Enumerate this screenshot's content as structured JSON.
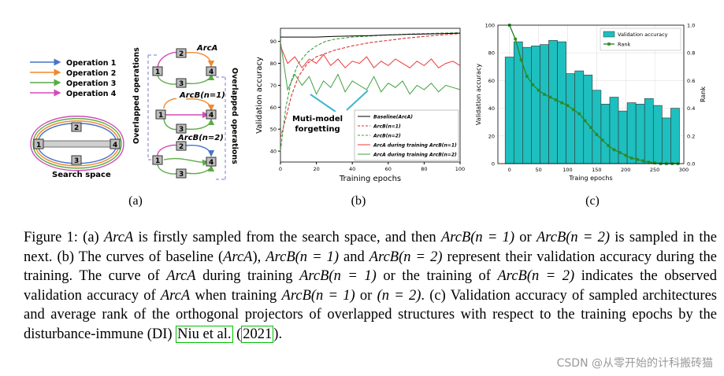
{
  "panel_a": {
    "legend": [
      {
        "label": "Operation 1",
        "color": "#4a74c9"
      },
      {
        "label": "Operation 2",
        "color": "#f08a2e"
      },
      {
        "label": "Operation 3",
        "color": "#5aac45"
      },
      {
        "label": "Operation 4",
        "color": "#d24bb8"
      }
    ],
    "search_space_label": "Search space",
    "arc_a_label": "ArcA",
    "arc_b1_label": "ArcB(n=1)",
    "arc_b2_label": "ArcB(n=2)",
    "overlap_left": "Overlapped operations",
    "overlap_right": "Overlapped operations",
    "nodes": [
      "1",
      "2",
      "3",
      "4"
    ]
  },
  "chart_data": [
    {
      "type": "line",
      "xlabel": "Training epochs",
      "ylabel": "Validation accuracy",
      "xlim": [
        0,
        100
      ],
      "ylim": [
        35,
        96
      ],
      "xticks": [
        "0",
        "20",
        "40",
        "60",
        "80",
        "100"
      ],
      "yticks": [
        "40",
        "50",
        "60",
        "70",
        "80",
        "90"
      ],
      "annotation": "Muti-model forgetting",
      "legend_placement": "bottom-right",
      "series": [
        {
          "name": "Baseline(ArcA)",
          "color": "#000000",
          "style": "solid",
          "x": [
            0,
            2,
            10,
            20,
            30,
            40,
            50,
            60,
            70,
            80,
            90,
            100
          ],
          "y": [
            92,
            92,
            92,
            92,
            92.3,
            92.5,
            92.7,
            93,
            93.2,
            93.4,
            93.6,
            93.8
          ]
        },
        {
          "name": "ArcB(n=1)",
          "color": "#e03030",
          "style": "dashed",
          "x": [
            0,
            3,
            6,
            10,
            15,
            20,
            30,
            40,
            50,
            60,
            70,
            80,
            90,
            100
          ],
          "y": [
            46,
            55,
            65,
            74,
            80,
            83,
            86,
            88,
            89.5,
            90.5,
            91.5,
            92.3,
            93,
            93.6
          ]
        },
        {
          "name": "ArcB(n=2)",
          "color": "#40a040",
          "style": "dashed",
          "x": [
            0,
            3,
            6,
            10,
            15,
            20,
            25,
            30,
            40,
            50,
            60,
            70,
            80,
            90,
            100
          ],
          "y": [
            40,
            60,
            72,
            80,
            85,
            88,
            90,
            91,
            92,
            92.5,
            93,
            93.3,
            93.6,
            93.8,
            94
          ]
        },
        {
          "name": "ArcA during training ArcB(n=1)",
          "color": "#f03a3a",
          "style": "solid",
          "x": [
            0,
            4,
            8,
            12,
            16,
            20,
            24,
            28,
            32,
            36,
            40,
            44,
            48,
            52,
            56,
            60,
            64,
            68,
            72,
            76,
            80,
            84,
            88,
            92,
            96,
            100
          ],
          "y": [
            88,
            80,
            83,
            78,
            82,
            80,
            84,
            79,
            82,
            78,
            81,
            80,
            83,
            78,
            81,
            79,
            82,
            80,
            78,
            81,
            79,
            82,
            78,
            80,
            81,
            79
          ]
        },
        {
          "name": "ArcA during training ArcB(n=2)",
          "color": "#40a040",
          "style": "solid",
          "x": [
            0,
            4,
            8,
            12,
            16,
            20,
            24,
            28,
            32,
            36,
            40,
            44,
            48,
            52,
            56,
            60,
            64,
            68,
            72,
            76,
            80,
            84,
            88,
            92,
            96,
            100
          ],
          "y": [
            90,
            68,
            75,
            70,
            74,
            66,
            72,
            69,
            75,
            67,
            72,
            70,
            68,
            74,
            67,
            71,
            69,
            72,
            66,
            70,
            68,
            71,
            67,
            70,
            69,
            68
          ]
        }
      ]
    },
    {
      "type": "bar",
      "xlabel": "Traing epochs",
      "ylabel": "Validation accuracy",
      "y2label": "Rank",
      "xlim": [
        -20,
        300
      ],
      "ylim": [
        0,
        100
      ],
      "y2lim": [
        0,
        1.0
      ],
      "xticks": [
        "0",
        "50",
        "100",
        "150",
        "200",
        "250",
        "300"
      ],
      "yticks": [
        "0",
        "20",
        "40",
        "60",
        "80",
        "100"
      ],
      "y2ticks": [
        "0.0",
        "0.2",
        "0.4",
        "0.6",
        "0.8",
        "1.0"
      ],
      "legend_placement": "top-right",
      "bar_series": {
        "name": "Validation accuracy",
        "color": "#1ebfbf",
        "x": [
          0,
          15,
          30,
          45,
          60,
          75,
          90,
          105,
          120,
          135,
          150,
          165,
          180,
          195,
          210,
          225,
          240,
          255,
          270,
          285
        ],
        "values": [
          77,
          88,
          84,
          85,
          86,
          89,
          88,
          65,
          67,
          64,
          53,
          43,
          48,
          38,
          44,
          43,
          47,
          42,
          33,
          40
        ]
      },
      "line_series": {
        "name": "Rank",
        "color": "#2a8a2a",
        "x": [
          0,
          10,
          20,
          30,
          40,
          50,
          60,
          70,
          80,
          90,
          100,
          110,
          120,
          130,
          140,
          150,
          160,
          170,
          180,
          190,
          200,
          210,
          220,
          230,
          240,
          250,
          260,
          270,
          280,
          290
        ],
        "values": [
          1.0,
          0.9,
          0.75,
          0.63,
          0.57,
          0.53,
          0.5,
          0.48,
          0.46,
          0.44,
          0.42,
          0.39,
          0.36,
          0.31,
          0.26,
          0.21,
          0.17,
          0.13,
          0.1,
          0.08,
          0.06,
          0.04,
          0.03,
          0.02,
          0.01,
          0.005,
          0.0,
          0.0,
          0.0,
          0.0
        ]
      }
    }
  ],
  "labels": {
    "a": "(a)",
    "b": "(b)",
    "c": "(c)"
  },
  "caption": {
    "p1": "Figure 1: (a) ",
    "m1": "ArcA",
    "p2": " is firstly sampled from the search space, and then ",
    "m2": "ArcB(n = 1)",
    "p3": " or ",
    "m3": "ArcB(n = 2)",
    "p4": " is sampled in the next. (b) The curves of baseline (",
    "m4": "ArcA",
    "p5": "), ",
    "m5": "ArcB(n = 1)",
    "p6": " and ",
    "m6": "ArcB(n = 2)",
    "p7": " represent their validation accuracy during the training. The curve of ",
    "m7": "ArcA",
    "p8": " during training ",
    "m8": "ArcB(n = 1)",
    "p9": " or the training of ",
    "m9": "ArcB(n = 2)",
    "p10": " indicates the observed validation accuracy of ",
    "m10": "ArcA",
    "p11": " when training ",
    "m11": "ArcB(n = 1)",
    "p12": " or ",
    "m12": "(n = 2)",
    "p13": ". (c) Validation accuracy of sampled architectures and average rank of the orthogonal projectors of overlapped structures with respect to the training epochs by the disturbance-immune (DI) ",
    "cite_author": "Niu et al.",
    "p14": " (",
    "cite_year": "2021",
    "p15": ")."
  },
  "watermark": "CSDN @从零开始的计科搬砖猫"
}
